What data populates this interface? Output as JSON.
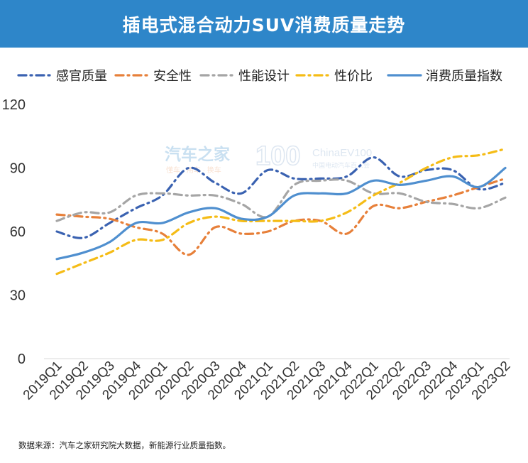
{
  "header": {
    "title": "插电式混合动力SUV消费质量走势"
  },
  "source_note": "数据来源：汽车之家研究院大数据，新能源行业质量指数。",
  "watermark": {
    "brand1": "汽车之家",
    "brand1_sub": "懂车 · 用车 · 换车",
    "brand2": "ChinaEV100",
    "brand2_sub": "中国电动汽车百人会"
  },
  "chart_data": {
    "type": "line",
    "categories": [
      "2019Q1",
      "2019Q2",
      "2019Q3",
      "2019Q4",
      "2020Q1",
      "2020Q2",
      "2020Q3",
      "2020Q4",
      "2021Q1",
      "2021Q2",
      "2021Q3",
      "2021Q4",
      "2022Q1",
      "2022Q2",
      "2022Q3",
      "2022Q4",
      "2023Q1",
      "2023Q2"
    ],
    "ylim": [
      0,
      120
    ],
    "yticks": [
      0,
      30,
      60,
      90,
      120
    ],
    "legend_position": "top",
    "grid": false,
    "series": [
      {
        "name": "感官质量",
        "color": "#3a62b1",
        "style": "dashdot",
        "values": [
          60,
          57,
          64,
          71,
          77,
          90,
          83,
          78,
          89,
          85,
          85,
          86,
          95,
          86,
          89,
          89,
          80,
          83
        ]
      },
      {
        "name": "安全性",
        "color": "#e7803a",
        "style": "dashdot",
        "values": [
          68,
          67,
          66,
          62,
          59,
          49,
          62,
          59,
          60,
          65,
          65,
          59,
          72,
          71,
          74,
          77,
          81,
          85
        ]
      },
      {
        "name": "性能设计",
        "color": "#a5a5a5",
        "style": "dashdot",
        "values": [
          65,
          69,
          69,
          77,
          78,
          77,
          77,
          73,
          67,
          82,
          84,
          84,
          78,
          78,
          74,
          73,
          71,
          76
        ]
      },
      {
        "name": "性价比",
        "color": "#f5bc16",
        "style": "dashdot",
        "values": [
          40,
          45,
          50,
          56,
          56,
          64,
          67,
          65,
          65,
          65,
          65,
          69,
          77,
          83,
          90,
          95,
          96,
          99
        ]
      },
      {
        "name": "消费质量指数",
        "color": "#4f8fcf",
        "style": "solid",
        "values": [
          47,
          50,
          55,
          64,
          64,
          69,
          71,
          66,
          67,
          77,
          78,
          78,
          84,
          82,
          84,
          86,
          81,
          90
        ]
      }
    ]
  }
}
